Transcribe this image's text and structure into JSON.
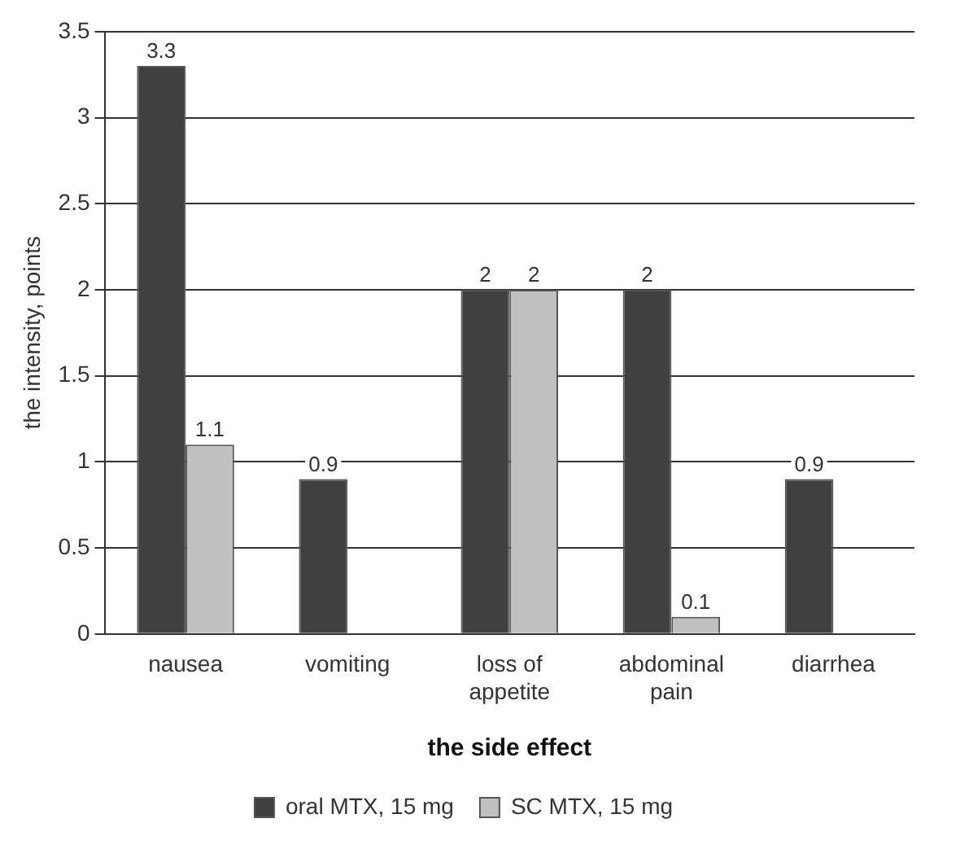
{
  "chart_data": {
    "type": "bar",
    "xlabel": "the side effect",
    "ylabel": "the intensity, points",
    "categories": [
      "nausea",
      "vomiting",
      "loss of appetite",
      "abdominal pain",
      "diarrhea"
    ],
    "series": [
      {
        "name": "oral MTX, 15 mg",
        "color": "#404040",
        "values": [
          3.3,
          0.9,
          2,
          2,
          0.9
        ]
      },
      {
        "name": "SC MTX, 15 mg",
        "color": "#c0c0c0",
        "values": [
          1.1,
          null,
          2,
          0.1,
          null
        ]
      }
    ],
    "ylim": [
      0,
      3.5
    ],
    "yticks": [
      0,
      0.5,
      1,
      1.5,
      2,
      2.5,
      3,
      3.5
    ],
    "grid": "y",
    "legend": "bottom",
    "data_labels": true
  }
}
